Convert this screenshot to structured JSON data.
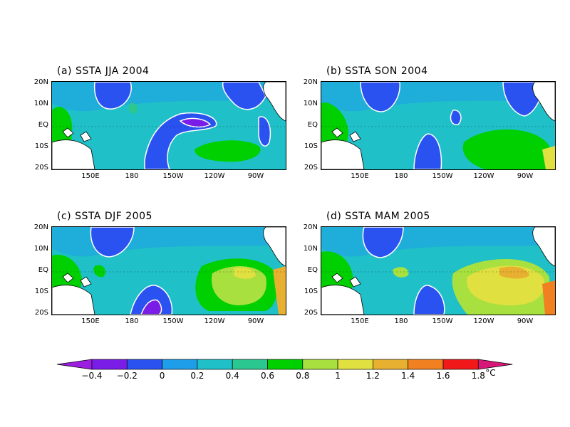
{
  "panels": [
    {
      "id": "a",
      "title": "(a) SSTA JJA 2004"
    },
    {
      "id": "b",
      "title": "(b) SSTA SON 2004"
    },
    {
      "id": "c",
      "title": "(c) SSTA DJF 2005"
    },
    {
      "id": "d",
      "title": "(d) SSTA MAM 2005"
    }
  ],
  "axes": {
    "lat_labels": [
      "20N",
      "10N",
      "EQ",
      "10S",
      "20S"
    ],
    "lon_labels": [
      "150E",
      "180",
      "150W",
      "120W",
      "90W"
    ]
  },
  "colorbar": {
    "labels": [
      "-0.4",
      "-0.2",
      "0",
      "0.2",
      "0.4",
      "0.6",
      "0.8",
      "1",
      "1.2",
      "1.4",
      "1.6",
      "1.8"
    ],
    "unit": "°C",
    "colors": [
      "#9c1ee0",
      "#7a1de6",
      "#2a52f0",
      "#1e9ee8",
      "#1fc0c8",
      "#2ac890",
      "#00d000",
      "#a8e040",
      "#e0e040",
      "#e8b030",
      "#f08020",
      "#f01818",
      "#d81878"
    ]
  }
}
